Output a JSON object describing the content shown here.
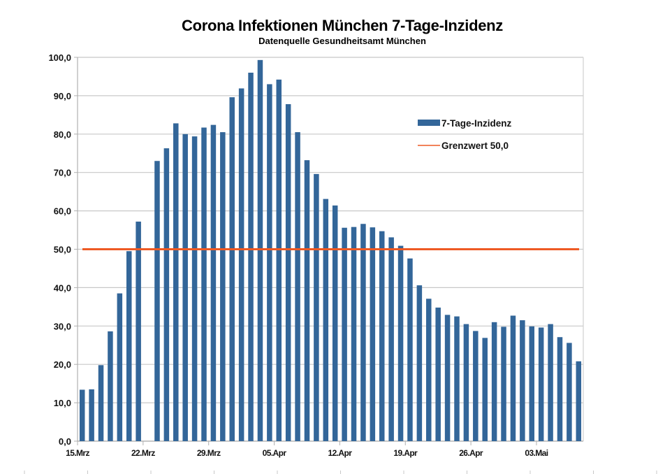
{
  "chart_data": {
    "type": "bar",
    "title": "Corona Infektionen München 7-Tage-Inzidenz",
    "subtitle": "Datenquelle Gesundheitsamt München",
    "xlabel": "",
    "ylabel": "",
    "ylim": [
      0,
      100
    ],
    "yticks": [
      "0,0",
      "10,0",
      "20,0",
      "30,0",
      "40,0",
      "50,0",
      "60,0",
      "70,0",
      "80,0",
      "90,0",
      "100,0"
    ],
    "xtick_labels": [
      "15.Mrz",
      "22.Mrz",
      "29.Mrz",
      "05.Apr",
      "12.Apr",
      "19.Apr",
      "26.Apr",
      "03.Mai"
    ],
    "grid": true,
    "legend_position": "upper right (inside plot)",
    "categories": [
      "15.Mrz",
      "16.Mrz",
      "17.Mrz",
      "18.Mrz",
      "19.Mrz",
      "20.Mrz",
      "21.Mrz",
      "22.Mrz",
      "23.Mrz",
      "24.Mrz",
      "25.Mrz",
      "26.Mrz",
      "27.Mrz",
      "28.Mrz",
      "29.Mrz",
      "30.Mrz",
      "31.Mrz",
      "01.Apr",
      "02.Apr",
      "03.Apr",
      "04.Apr",
      "05.Apr",
      "06.Apr",
      "07.Apr",
      "08.Apr",
      "09.Apr",
      "10.Apr",
      "11.Apr",
      "12.Apr",
      "13.Apr",
      "14.Apr",
      "15.Apr",
      "16.Apr",
      "17.Apr",
      "18.Apr",
      "19.Apr",
      "20.Apr",
      "21.Apr",
      "22.Apr",
      "23.Apr",
      "24.Apr",
      "25.Apr",
      "26.Apr",
      "27.Apr",
      "28.Apr",
      "29.Apr",
      "30.Apr",
      "01.Mai",
      "02.Mai",
      "03.Mai",
      "04.Mai",
      "05.Mai",
      "06.Mai",
      "07.Mai"
    ],
    "series": [
      {
        "name": "7-Tage-Inzidenz",
        "type": "bar",
        "color": "#336699",
        "values": [
          13.4,
          13.5,
          19.8,
          28.6,
          38.5,
          49.5,
          57.2,
          null,
          73.0,
          76.3,
          82.8,
          80.0,
          79.4,
          81.7,
          82.4,
          80.5,
          89.6,
          91.9,
          96.0,
          99.3,
          93.0,
          94.2,
          87.8,
          80.5,
          73.2,
          69.6,
          63.1,
          61.4,
          55.6,
          55.8,
          56.6,
          55.7,
          54.7,
          53.1,
          50.9,
          47.6,
          40.6,
          37.1,
          34.8,
          32.9,
          32.5,
          30.5,
          28.7,
          26.9,
          31.0,
          29.8,
          32.7,
          31.5,
          29.9,
          29.6,
          30.5,
          27.1,
          25.6,
          20.8
        ]
      },
      {
        "name": "Grenzwert 50,0",
        "type": "line",
        "color": "#ee5a24",
        "value": 50.0
      }
    ]
  },
  "legend": {
    "items": [
      {
        "label": "7-Tage-Inzidenz",
        "color": "#336699"
      },
      {
        "label": "Grenzwert 50,0",
        "color": "#ee5a24"
      }
    ]
  }
}
